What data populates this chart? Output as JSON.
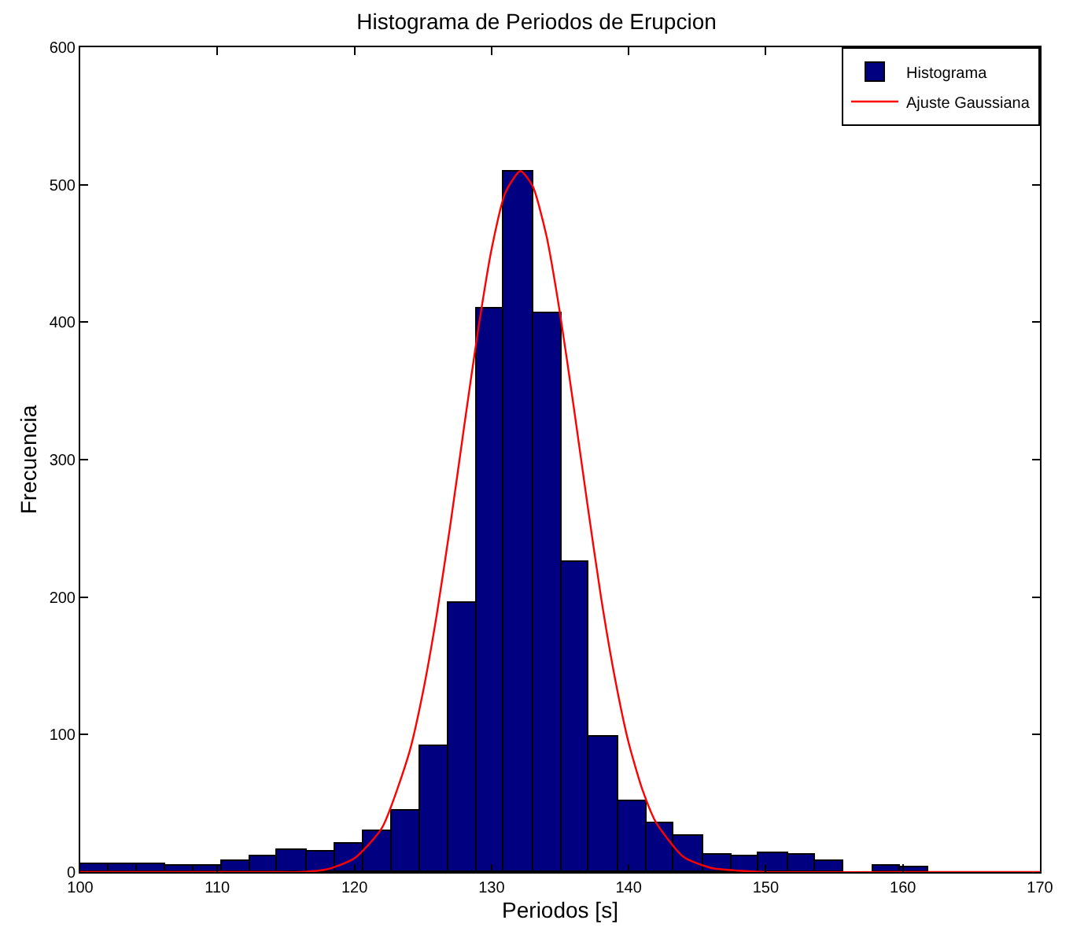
{
  "chart_data": {
    "type": "histogram",
    "title": "Histograma de Periodos de Erupcion",
    "xlabel": "Periodos [s]",
    "ylabel": "Frecuencia",
    "bins": [
      100.0,
      102.1,
      104.1,
      106.2,
      108.3,
      110.3,
      112.4,
      114.4,
      116.5,
      118.6,
      120.6,
      122.7,
      124.8,
      126.8,
      128.9,
      130.9,
      133.0,
      135.1,
      137.1,
      139.2,
      141.3,
      143.3,
      145.4,
      147.5,
      149.5,
      151.6,
      153.6,
      155.7,
      157.8,
      159.8,
      161.9
    ],
    "series": [
      {
        "name": "Histograma",
        "type": "histogram",
        "color": "#000080",
        "values": [
          6,
          6,
          6,
          5,
          5,
          8,
          12,
          16,
          15,
          21,
          30,
          45,
          92,
          196,
          410,
          510,
          406,
          226,
          98,
          52,
          36,
          26,
          13,
          12,
          14,
          13,
          8,
          0,
          5,
          3
        ]
      },
      {
        "name": "Ajuste Gaussiana",
        "type": "line",
        "color": "#ff0000",
        "x": [
          100,
          110,
          114,
          116,
          118,
          120,
          122,
          124,
          125,
          126,
          127,
          128,
          129,
          130,
          131,
          132.1,
          133,
          134,
          135,
          136,
          137,
          138,
          139,
          140,
          141,
          142,
          144,
          146,
          148,
          150,
          160,
          170
        ],
        "values": [
          0,
          0,
          0,
          0,
          2,
          10,
          32,
          87,
          131,
          187,
          253,
          324,
          393,
          453,
          494,
          510,
          499,
          463,
          406,
          338,
          267,
          199,
          141,
          94,
          60,
          36,
          11,
          3,
          1,
          0,
          0,
          0
        ]
      }
    ],
    "xlim": [
      100,
      170
    ],
    "xticks": [
      100,
      110,
      120,
      130,
      140,
      150,
      160,
      170
    ],
    "ylim": [
      0,
      600
    ],
    "yticks": [
      0,
      100,
      200,
      300,
      400,
      500,
      600
    ],
    "grid": false,
    "legend": "top right"
  }
}
